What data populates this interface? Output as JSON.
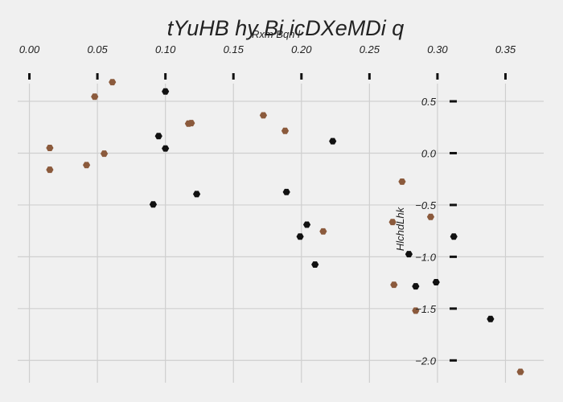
{
  "chart_data": {
    "type": "scatter",
    "title": "tYuHB hy Bi icDXeMDi   q",
    "xlabel": "Rxm  Bqn l",
    "ylabel": "HlchdLhk",
    "xlim": [
      -0.0086,
      0.3781
    ],
    "ylim": [
      -2.215,
      0.795
    ],
    "x_ticks": [
      0.0,
      0.05,
      0.1,
      0.15,
      0.2,
      0.25,
      0.3,
      0.35
    ],
    "x_tick_labels": [
      "0.00",
      "0.05",
      "0.10",
      "0.15",
      "0.20",
      "0.25",
      "0.30",
      "0.35"
    ],
    "y_ticks": [
      0.5,
      0.0,
      -0.5,
      -1.0,
      -1.5,
      -2.0
    ],
    "y_tick_labels": [
      "0.5",
      "0.0",
      "−0.5",
      "−1.0",
      "−1.5",
      "−2.0"
    ],
    "x_axis_position": "top",
    "y_axis_position": "right",
    "grid": true,
    "legend": "none",
    "background": "#f0f0f0",
    "series": [
      {
        "color": "#8b5a3c",
        "points": [
          {
            "x": 0.015,
            "y": 0.05
          },
          {
            "x": 0.015,
            "y": -0.16
          },
          {
            "x": 0.042,
            "y": -0.115
          },
          {
            "x": 0.048,
            "y": 0.545
          },
          {
            "x": 0.055,
            "y": -0.005
          },
          {
            "x": 0.061,
            "y": 0.685
          },
          {
            "x": 0.117,
            "y": 0.285
          },
          {
            "x": 0.119,
            "y": 0.29
          },
          {
            "x": 0.172,
            "y": 0.365
          },
          {
            "x": 0.188,
            "y": 0.215
          },
          {
            "x": 0.216,
            "y": -0.755
          },
          {
            "x": 0.267,
            "y": -0.665
          },
          {
            "x": 0.268,
            "y": -1.27
          },
          {
            "x": 0.274,
            "y": -0.275
          },
          {
            "x": 0.284,
            "y": -1.52
          },
          {
            "x": 0.295,
            "y": -0.615
          },
          {
            "x": 0.361,
            "y": -2.11
          }
        ]
      },
      {
        "color": "#111111",
        "points": [
          {
            "x": 0.091,
            "y": -0.495
          },
          {
            "x": 0.095,
            "y": 0.165
          },
          {
            "x": 0.1,
            "y": 0.045
          },
          {
            "x": 0.1,
            "y": 0.595
          },
          {
            "x": 0.123,
            "y": -0.395
          },
          {
            "x": 0.189,
            "y": -0.375
          },
          {
            "x": 0.199,
            "y": -0.805
          },
          {
            "x": 0.204,
            "y": -0.69
          },
          {
            "x": 0.21,
            "y": -1.075
          },
          {
            "x": 0.223,
            "y": 0.115
          },
          {
            "x": 0.279,
            "y": -0.975
          },
          {
            "x": 0.284,
            "y": -1.285
          },
          {
            "x": 0.299,
            "y": -1.245
          },
          {
            "x": 0.312,
            "y": -0.805
          },
          {
            "x": 0.339,
            "y": -1.6
          }
        ]
      }
    ]
  }
}
